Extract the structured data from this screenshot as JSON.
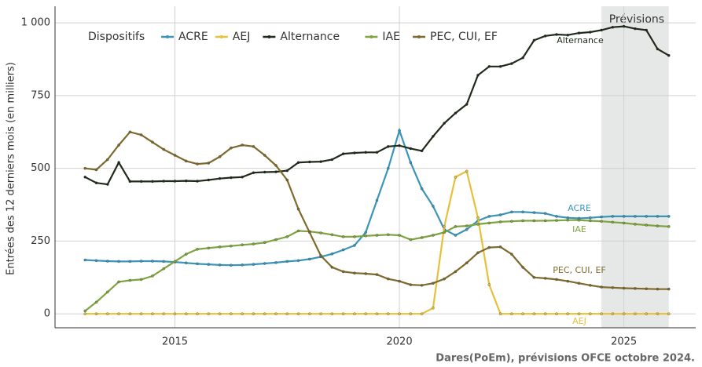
{
  "chart_data": {
    "type": "line",
    "y_label": "Entrées des 12 derniers mois (en milliers)",
    "legend_title": "Dispositifs",
    "legend": "top-left",
    "annotation": "Prévisions",
    "forecast_start": 2024.5,
    "forecast_end": 2026.0,
    "source": "Dares(PoEm), prévisions OFCE octobre 2024.",
    "grid": true,
    "x": [
      2013,
      2013.25,
      2013.5,
      2013.75,
      2014,
      2014.25,
      2014.5,
      2014.75,
      2015,
      2015.25,
      2015.5,
      2015.75,
      2016,
      2016.25,
      2016.5,
      2016.75,
      2017,
      2017.25,
      2017.5,
      2017.75,
      2018,
      2018.25,
      2018.5,
      2018.75,
      2019,
      2019.25,
      2019.5,
      2019.75,
      2020,
      2020.25,
      2020.5,
      2020.75,
      2021,
      2021.25,
      2021.5,
      2021.75,
      2022,
      2022.25,
      2022.5,
      2022.75,
      2023,
      2023.25,
      2023.5,
      2023.75,
      2024,
      2024.25,
      2024.5,
      2024.75,
      2025,
      2025.25,
      2025.5,
      2025.75,
      2026
    ],
    "xlim": [
      2012.33,
      2026.6
    ],
    "xticks": [
      2015,
      2020,
      2025
    ],
    "ylim": [
      -48,
      1057
    ],
    "yticks": [
      0,
      250,
      500,
      750,
      {
        "value": 1000,
        "label": "1 000"
      }
    ],
    "series": [
      {
        "name": "ACRE",
        "color": "#3b95b9",
        "values": [
          185,
          183,
          181,
          180,
          180,
          181,
          181,
          180,
          178,
          175,
          172,
          170,
          168,
          167,
          168,
          170,
          173,
          176,
          180,
          183,
          188,
          196,
          206,
          220,
          235,
          280,
          390,
          500,
          630,
          520,
          430,
          370,
          290,
          270,
          290,
          320,
          335,
          340,
          350,
          350,
          348,
          345,
          335,
          330,
          328,
          330,
          333,
          335,
          335,
          335,
          335,
          335,
          335
        ]
      },
      {
        "name": "AEJ",
        "color": "#e6c03a",
        "values": [
          0,
          0,
          0,
          0,
          0,
          0,
          0,
          0,
          0,
          0,
          0,
          0,
          0,
          0,
          0,
          0,
          0,
          0,
          0,
          0,
          0,
          0,
          0,
          0,
          0,
          0,
          0,
          0,
          0,
          0,
          0,
          20,
          300,
          470,
          490,
          330,
          100,
          0,
          0,
          0,
          0,
          0,
          0,
          0,
          0,
          0,
          0,
          0,
          0,
          0,
          0,
          0,
          0
        ]
      },
      {
        "name": "Alternance",
        "color": "#1f2a1a",
        "values": [
          470,
          450,
          445,
          520,
          455,
          455,
          455,
          456,
          456,
          457,
          456,
          460,
          465,
          468,
          470,
          485,
          487,
          488,
          492,
          520,
          522,
          523,
          530,
          550,
          553,
          555,
          555,
          575,
          578,
          568,
          560,
          610,
          655,
          690,
          720,
          820,
          850,
          850,
          860,
          880,
          940,
          955,
          960,
          958,
          965,
          968,
          975,
          985,
          988,
          980,
          975,
          910,
          888
        ]
      },
      {
        "name": "IAE",
        "color": "#7fa33f",
        "values": [
          10,
          40,
          75,
          110,
          115,
          118,
          130,
          155,
          180,
          205,
          222,
          226,
          230,
          233,
          237,
          240,
          245,
          255,
          265,
          285,
          283,
          278,
          272,
          265,
          265,
          268,
          270,
          272,
          270,
          255,
          262,
          270,
          280,
          300,
          302,
          308,
          312,
          316,
          318,
          320,
          320,
          320,
          321,
          322,
          322,
          320,
          318,
          315,
          312,
          308,
          305,
          302,
          300
        ]
      },
      {
        "name": "PEC, CUI, EF",
        "color": "#7d6a2c",
        "values": [
          500,
          495,
          530,
          580,
          625,
          615,
          590,
          565,
          545,
          525,
          515,
          518,
          540,
          570,
          580,
          575,
          545,
          510,
          460,
          360,
          280,
          200,
          160,
          145,
          140,
          138,
          135,
          120,
          112,
          100,
          98,
          105,
          120,
          145,
          175,
          210,
          228,
          230,
          205,
          160,
          125,
          122,
          118,
          112,
          105,
          98,
          92,
          90,
          88,
          87,
          86,
          85,
          85
        ]
      }
    ]
  }
}
